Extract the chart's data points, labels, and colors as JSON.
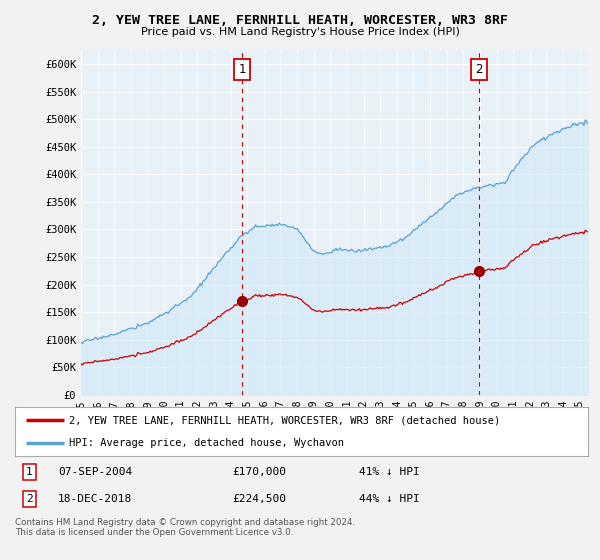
{
  "title": "2, YEW TREE LANE, FERNHILL HEATH, WORCESTER, WR3 8RF",
  "subtitle": "Price paid vs. HM Land Registry's House Price Index (HPI)",
  "ylabel_ticks": [
    "£0",
    "£50K",
    "£100K",
    "£150K",
    "£200K",
    "£250K",
    "£300K",
    "£350K",
    "£400K",
    "£450K",
    "£500K",
    "£550K",
    "£600K"
  ],
  "ytick_values": [
    0,
    50000,
    100000,
    150000,
    200000,
    250000,
    300000,
    350000,
    400000,
    450000,
    500000,
    550000,
    600000
  ],
  "ylim": [
    0,
    625000
  ],
  "xlim_start": 1995.0,
  "xlim_end": 2025.5,
  "hpi_color": "#5ba3d0",
  "hpi_fill_color": "#d0e8f5",
  "price_color": "#cc0000",
  "marker_color_sale": "#990000",
  "vline_color": "#cc0000",
  "bg_color": "#e8f0f8",
  "sale1_x": 2004.69,
  "sale1_y": 170000,
  "sale2_x": 2018.96,
  "sale2_y": 224500,
  "legend_line1": "2, YEW TREE LANE, FERNHILL HEATH, WORCESTER, WR3 8RF (detached house)",
  "legend_line2": "HPI: Average price, detached house, Wychavon",
  "table_row1": [
    "1",
    "07-SEP-2004",
    "£170,000",
    "41% ↓ HPI"
  ],
  "table_row2": [
    "2",
    "18-DEC-2018",
    "£224,500",
    "44% ↓ HPI"
  ],
  "footnote": "Contains HM Land Registry data © Crown copyright and database right 2024.\nThis data is licensed under the Open Government Licence v3.0.",
  "xtick_years": [
    1995,
    1996,
    1997,
    1998,
    1999,
    2000,
    2001,
    2002,
    2003,
    2004,
    2005,
    2006,
    2007,
    2008,
    2009,
    2010,
    2011,
    2012,
    2013,
    2014,
    2015,
    2016,
    2017,
    2018,
    2019,
    2020,
    2021,
    2022,
    2023,
    2024,
    2025
  ]
}
